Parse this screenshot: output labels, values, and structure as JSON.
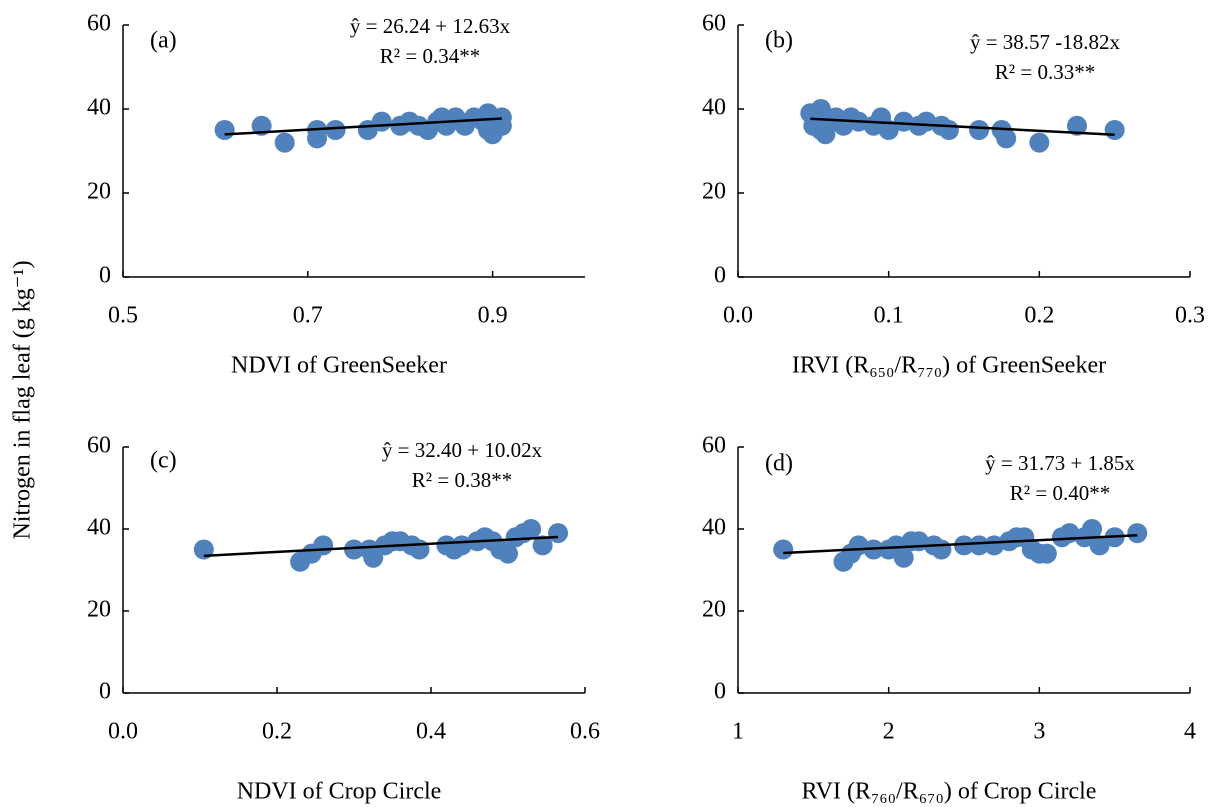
{
  "ylabel": "Nitrogen in flag leaf (g kg⁻¹)",
  "chart_data": [
    {
      "type": "scatter",
      "panel_label": "(a)",
      "xlabel": "NDVI of GreenSeeker",
      "equation": "ŷ = 26.24 + 12.63x",
      "r2": "R² = 0.34**",
      "fit": {
        "intercept": 26.24,
        "slope": 12.63
      },
      "color": "#4f81bd",
      "xlim": [
        0.5,
        1.0
      ],
      "xticks": [
        0.5,
        0.7,
        0.9
      ],
      "ylim": [
        0,
        60
      ],
      "yticks": [
        0,
        20,
        40,
        60
      ],
      "x": [
        0.61,
        0.65,
        0.675,
        0.71,
        0.71,
        0.73,
        0.765,
        0.78,
        0.8,
        0.81,
        0.82,
        0.83,
        0.84,
        0.845,
        0.85,
        0.86,
        0.87,
        0.88,
        0.89,
        0.895,
        0.895,
        0.9,
        0.91,
        0.91
      ],
      "values": [
        35,
        36,
        32,
        35,
        33,
        35,
        35,
        37,
        36,
        37,
        36,
        35,
        37,
        38,
        36,
        38,
        36,
        38,
        37,
        39,
        35,
        34,
        38,
        36
      ]
    },
    {
      "type": "scatter",
      "panel_label": "(b)",
      "xlabel": "IRVI (R₆₅₀/R₇₇₀) of GreenSeeker",
      "equation": "ŷ = 38.57 -18.82x",
      "r2": "R² = 0.33**",
      "fit": {
        "intercept": 38.57,
        "slope": -18.82
      },
      "color": "#4f81bd",
      "xlim": [
        0,
        0.3
      ],
      "xticks": [
        {
          "value": 0,
          "label": "0.0"
        },
        0.1,
        0.2,
        0.3
      ],
      "ylim": [
        0,
        60
      ],
      "yticks": [
        0,
        20,
        40,
        60
      ],
      "x": [
        0.048,
        0.05,
        0.055,
        0.055,
        0.058,
        0.06,
        0.065,
        0.07,
        0.075,
        0.08,
        0.09,
        0.095,
        0.1,
        0.11,
        0.12,
        0.125,
        0.135,
        0.14,
        0.16,
        0.175,
        0.178,
        0.2,
        0.225,
        0.25
      ],
      "values": [
        39,
        36,
        40,
        35,
        34,
        37,
        38,
        36,
        38,
        37,
        36,
        38,
        35,
        37,
        36,
        37,
        36,
        35,
        35,
        35,
        33,
        32,
        36,
        35
      ]
    },
    {
      "type": "scatter",
      "panel_label": "(c)",
      "xlabel": "NDVI of Crop Circle",
      "equation": "ŷ = 32.40 + 10.02x",
      "r2": "R² = 0.38**",
      "fit": {
        "intercept": 32.4,
        "slope": 10.02
      },
      "color": "#4f81bd",
      "xlim": [
        0,
        0.6
      ],
      "xticks": [
        {
          "value": 0,
          "label": "0.0"
        },
        0.2,
        0.4,
        0.6
      ],
      "ylim": [
        0,
        60
      ],
      "yticks": [
        0,
        20,
        40,
        60
      ],
      "x": [
        0.105,
        0.23,
        0.245,
        0.26,
        0.3,
        0.32,
        0.325,
        0.34,
        0.35,
        0.36,
        0.375,
        0.385,
        0.42,
        0.43,
        0.44,
        0.46,
        0.47,
        0.48,
        0.49,
        0.5,
        0.51,
        0.52,
        0.53,
        0.545,
        0.565
      ],
      "values": [
        35,
        32,
        34,
        36,
        35,
        35,
        33,
        36,
        37,
        37,
        36,
        35,
        36,
        35,
        36,
        37,
        38,
        37,
        35,
        34,
        38,
        39,
        40,
        36,
        39
      ]
    },
    {
      "type": "scatter",
      "panel_label": "(d)",
      "xlabel": "RVI (R₇₆₀/R₆₇₀) of Crop Circle",
      "equation": "ŷ = 31.73 + 1.85x",
      "r2": "R² = 0.40**",
      "fit": {
        "intercept": 31.73,
        "slope": 1.85
      },
      "color": "#4f81bd",
      "xlim": [
        1,
        4
      ],
      "xticks": [
        1,
        2,
        3,
        4
      ],
      "ylim": [
        0,
        60
      ],
      "yticks": [
        0,
        20,
        40,
        60
      ],
      "x": [
        1.3,
        1.7,
        1.75,
        1.8,
        1.9,
        2.0,
        2.05,
        2.1,
        2.15,
        2.2,
        2.3,
        2.35,
        2.5,
        2.6,
        2.7,
        2.8,
        2.85,
        2.9,
        2.95,
        3.0,
        3.05,
        3.15,
        3.2,
        3.3,
        3.35,
        3.4,
        3.5,
        3.65
      ],
      "values": [
        35,
        32,
        34,
        36,
        35,
        35,
        36,
        33,
        37,
        37,
        36,
        35,
        36,
        36,
        36,
        37,
        38,
        38,
        35,
        34,
        34,
        38,
        39,
        38,
        40,
        36,
        38,
        39
      ]
    }
  ]
}
